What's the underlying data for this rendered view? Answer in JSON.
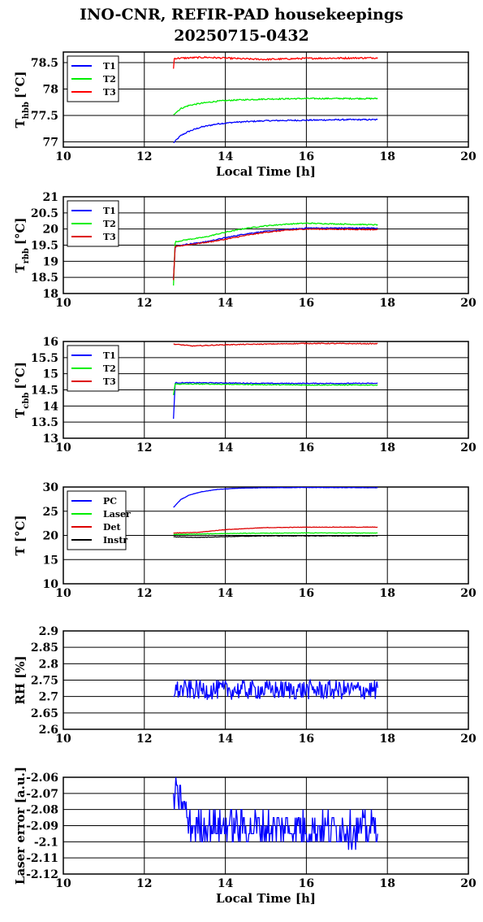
{
  "figure": {
    "title_line1": "INO-CNR, REFIR-PAD housekeepings",
    "title_line2": "20250715-0432"
  },
  "chart_data": [
    {
      "type": "line",
      "ylabel_main": "T",
      "ylabel_sub": "hbb",
      "ylabel_unit": "[°C]",
      "xlabel": "Local Time [h]",
      "xlim": [
        10,
        20
      ],
      "ylim": [
        76.9,
        78.7
      ],
      "xticks": [
        10,
        12,
        14,
        16,
        18,
        20
      ],
      "yticks": [
        77,
        77.5,
        78,
        78.5
      ],
      "ytick_labels": [
        "77",
        "77.5",
        "78",
        "78.5"
      ],
      "grid": true,
      "legend_position": "top-left",
      "series": [
        {
          "name": "T1",
          "color": "#0000ff",
          "noise": 0.012,
          "points": [
            [
              12.72,
              76.98
            ],
            [
              12.9,
              77.12
            ],
            [
              13.1,
              77.2
            ],
            [
              13.4,
              77.28
            ],
            [
              13.8,
              77.34
            ],
            [
              14.2,
              77.37
            ],
            [
              15,
              77.4
            ],
            [
              16,
              77.41
            ],
            [
              17,
              77.42
            ],
            [
              17.76,
              77.42
            ]
          ]
        },
        {
          "name": "T2",
          "color": "#00ee00",
          "noise": 0.012,
          "points": [
            [
              12.72,
              77.52
            ],
            [
              12.9,
              77.63
            ],
            [
              13.1,
              77.69
            ],
            [
              13.4,
              77.73
            ],
            [
              13.8,
              77.77
            ],
            [
              14.2,
              77.79
            ],
            [
              15,
              77.81
            ],
            [
              16,
              77.82
            ],
            [
              17,
              77.82
            ],
            [
              17.76,
              77.82
            ]
          ]
        },
        {
          "name": "T3",
          "color": "#ff0000",
          "noise": 0.015,
          "points": [
            [
              12.72,
              78.38
            ],
            [
              12.74,
              78.58
            ],
            [
              13.5,
              78.6
            ],
            [
              14.5,
              78.57
            ],
            [
              15,
              78.56
            ],
            [
              16,
              78.58
            ],
            [
              17.76,
              78.59
            ]
          ]
        }
      ]
    },
    {
      "type": "line",
      "ylabel_main": "T",
      "ylabel_sub": "rbb",
      "ylabel_unit": "[°C]",
      "xlabel": "",
      "xlim": [
        10,
        20
      ],
      "ylim": [
        18,
        21
      ],
      "xticks": [
        10,
        12,
        14,
        16,
        18,
        20
      ],
      "yticks": [
        18,
        18.5,
        19,
        19.5,
        20,
        20.5,
        21
      ],
      "ytick_labels": [
        "18",
        "18.5",
        "19",
        "19.5",
        "20",
        "20.5",
        "21"
      ],
      "grid": true,
      "legend_position": "top-left",
      "series": [
        {
          "name": "T1",
          "color": "#0000ff",
          "noise": 0.015,
          "points": [
            [
              12.72,
              18.45
            ],
            [
              12.76,
              19.45
            ],
            [
              13,
              19.52
            ],
            [
              13.5,
              19.6
            ],
            [
              14,
              19.73
            ],
            [
              14.5,
              19.85
            ],
            [
              15,
              19.93
            ],
            [
              15.5,
              19.98
            ],
            [
              16,
              20.03
            ],
            [
              17,
              20.03
            ],
            [
              17.76,
              20.03
            ]
          ]
        },
        {
          "name": "T2",
          "color": "#00ee00",
          "noise": 0.015,
          "points": [
            [
              12.72,
              18.25
            ],
            [
              12.76,
              19.6
            ],
            [
              13,
              19.66
            ],
            [
              13.5,
              19.75
            ],
            [
              14,
              19.9
            ],
            [
              14.5,
              20.02
            ],
            [
              15,
              20.1
            ],
            [
              15.5,
              20.15
            ],
            [
              16,
              20.18
            ],
            [
              17,
              20.15
            ],
            [
              17.76,
              20.13
            ]
          ]
        },
        {
          "name": "T3",
          "color": "#dd0000",
          "noise": 0.015,
          "points": [
            [
              12.72,
              18.42
            ],
            [
              12.76,
              19.45
            ],
            [
              13,
              19.5
            ],
            [
              13.5,
              19.58
            ],
            [
              14,
              19.68
            ],
            [
              14.5,
              19.8
            ],
            [
              15,
              19.9
            ],
            [
              15.5,
              19.96
            ],
            [
              16,
              20
            ],
            [
              17,
              19.99
            ],
            [
              17.76,
              19.98
            ]
          ]
        }
      ]
    },
    {
      "type": "line",
      "ylabel_main": "T",
      "ylabel_sub": "cbb",
      "ylabel_unit": "[°C]",
      "xlabel": "",
      "xlim": [
        10,
        20
      ],
      "ylim": [
        13,
        16
      ],
      "xticks": [
        10,
        12,
        14,
        16,
        18,
        20
      ],
      "yticks": [
        13,
        13.5,
        14,
        14.5,
        15,
        15.5,
        16
      ],
      "ytick_labels": [
        "13",
        "13.5",
        "14",
        "14.5",
        "15",
        "15.5",
        "16"
      ],
      "grid": true,
      "legend_position": "top-left",
      "series": [
        {
          "name": "T1",
          "color": "#0000ff",
          "noise": 0.012,
          "points": [
            [
              12.72,
              13.6
            ],
            [
              12.76,
              14.72
            ],
            [
              13.5,
              14.72
            ],
            [
              15,
              14.7
            ],
            [
              16,
              14.7
            ],
            [
              17.76,
              14.7
            ]
          ]
        },
        {
          "name": "T2",
          "color": "#00ee00",
          "noise": 0.012,
          "points": [
            [
              12.72,
              14.35
            ],
            [
              12.76,
              14.68
            ],
            [
              13.5,
              14.68
            ],
            [
              15,
              14.66
            ],
            [
              16,
              14.65
            ],
            [
              17.76,
              14.65
            ]
          ]
        },
        {
          "name": "T3",
          "color": "#dd0000",
          "noise": 0.012,
          "points": [
            [
              12.72,
              15.92
            ],
            [
              13.2,
              15.86
            ],
            [
              14,
              15.9
            ],
            [
              15,
              15.92
            ],
            [
              16,
              15.94
            ],
            [
              17.76,
              15.93
            ]
          ]
        }
      ]
    },
    {
      "type": "line",
      "ylabel_main": "T [°C]",
      "ylabel_sub": "",
      "ylabel_unit": "",
      "xlabel": "",
      "xlim": [
        10,
        20
      ],
      "ylim": [
        10,
        30
      ],
      "xticks": [
        10,
        12,
        14,
        16,
        18,
        20
      ],
      "yticks": [
        10,
        15,
        20,
        25,
        30
      ],
      "ytick_labels": [
        "10",
        "15",
        "20",
        "25",
        "30"
      ],
      "grid": true,
      "legend_position": "top-left",
      "series": [
        {
          "name": "PC",
          "color": "#0000ff",
          "noise": 0.03,
          "points": [
            [
              12.72,
              25.8
            ],
            [
              12.9,
              27.4
            ],
            [
              13.1,
              28.3
            ],
            [
              13.4,
              29
            ],
            [
              13.8,
              29.5
            ],
            [
              14.3,
              29.75
            ],
            [
              15,
              29.85
            ],
            [
              16,
              29.9
            ],
            [
              17.76,
              29.85
            ]
          ]
        },
        {
          "name": "Laser",
          "color": "#00ee00",
          "noise": 0.05,
          "points": [
            [
              12.72,
              20.2
            ],
            [
              13.2,
              20.25
            ],
            [
              14,
              20.4
            ],
            [
              15,
              20.45
            ],
            [
              16,
              20.5
            ],
            [
              17.76,
              20.5
            ]
          ]
        },
        {
          "name": "Det",
          "color": "#dd0000",
          "noise": 0.04,
          "points": [
            [
              12.72,
              20.5
            ],
            [
              13.3,
              20.6
            ],
            [
              14,
              21.2
            ],
            [
              15,
              21.6
            ],
            [
              16,
              21.7
            ],
            [
              17.76,
              21.7
            ]
          ]
        },
        {
          "name": "Instr",
          "color": "#000000",
          "noise": 0.05,
          "points": [
            [
              12.72,
              19.7
            ],
            [
              13.3,
              19.6
            ],
            [
              14,
              19.75
            ],
            [
              15,
              19.9
            ],
            [
              16,
              19.9
            ],
            [
              17.76,
              19.9
            ]
          ]
        }
      ]
    },
    {
      "type": "line",
      "ylabel_main": "RH [%]",
      "ylabel_sub": "",
      "ylabel_unit": "",
      "xlabel": "",
      "xlim": [
        10,
        20
      ],
      "ylim": [
        2.6,
        2.9
      ],
      "xticks": [
        10,
        12,
        14,
        16,
        18,
        20
      ],
      "yticks": [
        2.6,
        2.65,
        2.7,
        2.75,
        2.8,
        2.85,
        2.9
      ],
      "ytick_labels": [
        "2.6",
        "2.65",
        "2.7",
        "2.75",
        "2.8",
        "2.85",
        "2.9"
      ],
      "grid": true,
      "legend_position": "",
      "series": [
        {
          "name": "",
          "color": "#0000ff",
          "noise": 0.03,
          "points": [
            [
              12.72,
              2.72
            ],
            [
              17.76,
              2.72
            ]
          ]
        }
      ]
    },
    {
      "type": "line",
      "ylabel_main": "Laser error [a.u.]",
      "ylabel_sub": "",
      "ylabel_unit": "",
      "xlabel": "Local Time [h]",
      "xlim": [
        10,
        20
      ],
      "ylim": [
        -2.12,
        -2.06
      ],
      "xticks": [
        10,
        12,
        14,
        16,
        18,
        20
      ],
      "yticks": [
        -2.12,
        -2.11,
        -2.1,
        -2.09,
        -2.08,
        -2.07,
        -2.06
      ],
      "ytick_labels": [
        "-2.12",
        "-2.11",
        "-2.1",
        "-2.09",
        "-2.08",
        "-2.07",
        "-2.06"
      ],
      "grid": true,
      "legend_position": "",
      "series": [
        {
          "name": "",
          "color": "#0000ff",
          "noise": 0.011,
          "quantum": 0.005,
          "points": [
            [
              12.72,
              -2.072
            ],
            [
              12.95,
              -2.075
            ],
            [
              13.1,
              -2.09
            ],
            [
              17.76,
              -2.092
            ]
          ]
        }
      ]
    }
  ]
}
